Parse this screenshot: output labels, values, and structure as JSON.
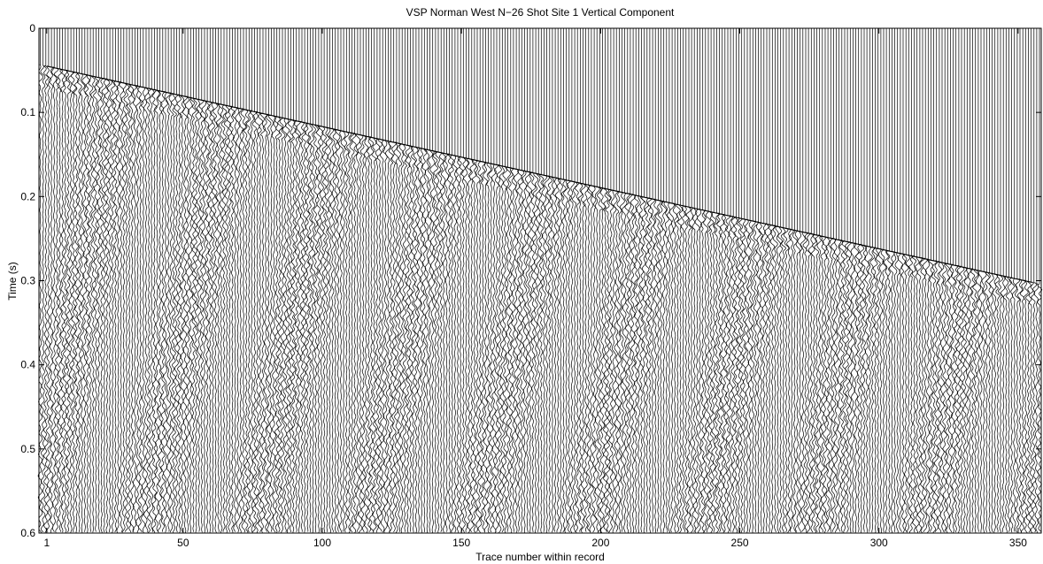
{
  "chart_data": {
    "type": "seismic-wiggle",
    "title": "VSP Norman West N−26 Shot Site 1 Vertical Component",
    "xlabel": "Trace number within record",
    "ylabel": "Time (s)",
    "xlim": [
      -1.8,
      358.3
    ],
    "ylim": [
      0,
      0.6
    ],
    "y_reversed": true,
    "xticks": [
      1,
      50,
      100,
      150,
      200,
      250,
      300,
      350
    ],
    "yticks": [
      0,
      0.1,
      0.2,
      0.3,
      0.4,
      0.5,
      0.6
    ],
    "first_arrival": {
      "x": [
        1,
        355
      ],
      "y": [
        0.045,
        0.302
      ]
    },
    "color": "#000000"
  }
}
